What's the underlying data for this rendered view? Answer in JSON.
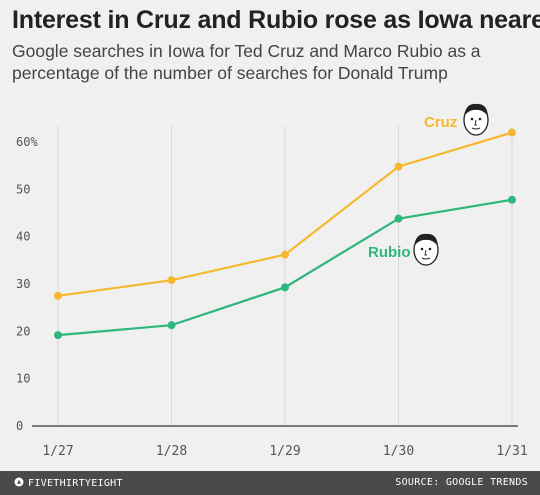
{
  "header": {
    "title": "Interest in Cruz and Rubio rose as Iowa neared",
    "subtitle": "Google searches in Iowa for Ted Cruz and Marco Rubio as a percentage of the number of searches for Donald Trump"
  },
  "footer": {
    "brand": "FIVETHIRTYEIGHT",
    "source": "SOURCE: GOOGLE TRENDS"
  },
  "chart_data": {
    "type": "line",
    "title": "Interest in Cruz and Rubio rose as Iowa neared",
    "subtitle": "Google searches in Iowa for Ted Cruz and Marco Rubio as a percentage of the number of searches for Donald Trump",
    "xlabel": "",
    "ylabel": "",
    "categories": [
      "1/27",
      "1/28",
      "1/29",
      "1/30",
      "1/31"
    ],
    "ylim": [
      0,
      60
    ],
    "yticks": [
      0,
      10,
      20,
      30,
      40,
      50,
      60
    ],
    "ytick_labels": [
      "0",
      "10",
      "20",
      "30",
      "40",
      "50",
      "60%"
    ],
    "grid": "vertical",
    "legend": "direct labels",
    "series": [
      {
        "name": "Cruz",
        "color": "#f5b82e",
        "values": [
          27.5,
          30.8,
          36.2,
          54.8,
          62.0
        ]
      },
      {
        "name": "Rubio",
        "color": "#2fb67c",
        "values": [
          19.2,
          21.3,
          29.3,
          43.8,
          47.8
        ]
      }
    ]
  }
}
